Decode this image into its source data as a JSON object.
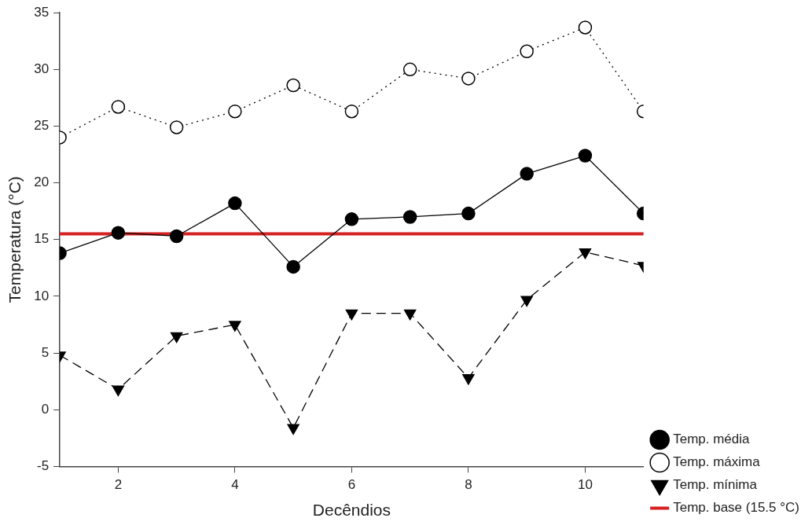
{
  "chart_data": {
    "type": "line",
    "xlabel": "Decêndios",
    "ylabel": "Temperatura (°C)",
    "x": [
      1,
      2,
      3,
      4,
      5,
      6,
      7,
      8,
      9,
      10,
      11
    ],
    "xlim": [
      1,
      11
    ],
    "xticks": [
      2,
      4,
      6,
      8,
      10
    ],
    "ylim": [
      -5,
      35
    ],
    "yticks": [
      -5,
      0,
      5,
      10,
      15,
      20,
      25,
      30,
      35
    ],
    "grid": false,
    "legend": "bottom right",
    "series": [
      {
        "name": "Temp. média",
        "color": "#000000",
        "marker": "circle",
        "line_style": "solid",
        "values": [
          13.8,
          15.6,
          15.3,
          18.2,
          12.6,
          16.8,
          17.0,
          17.3,
          20.8,
          22.4,
          17.3
        ]
      },
      {
        "name": "Temp. máxima",
        "color": "#000000",
        "marker": "circle_open",
        "line_style": "dotted",
        "values": [
          24.0,
          26.7,
          24.9,
          26.3,
          28.6,
          26.3,
          30.0,
          29.2,
          31.6,
          33.7,
          26.3
        ]
      },
      {
        "name": "Temp. mínima",
        "color": "#000000",
        "marker": "triangle",
        "line_style": "dashed",
        "values": [
          4.8,
          1.8,
          6.5,
          7.5,
          -1.6,
          8.5,
          8.5,
          2.8,
          9.7,
          13.9,
          12.7
        ]
      }
    ],
    "ref_lines": [
      {
        "axis": "y",
        "value": 15.5,
        "label": "Temp. base (15.5 °C)",
        "color": "#d42020"
      }
    ]
  }
}
